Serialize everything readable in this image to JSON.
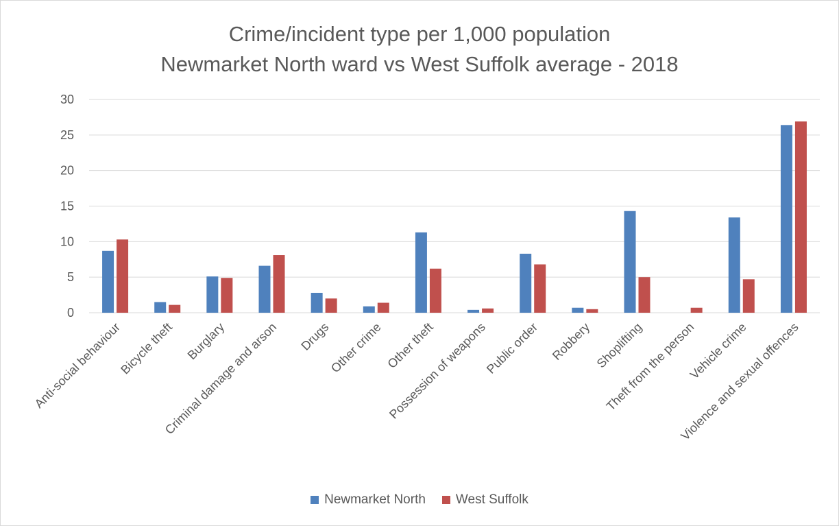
{
  "chart_data": {
    "type": "bar",
    "title": "Crime/incident type per 1,000 population",
    "subtitle": "Newmarket North ward vs West Suffolk average - 2018",
    "xlabel": "",
    "ylabel": "",
    "ylim": [
      0,
      30
    ],
    "yticks": [
      "0",
      "5",
      "10",
      "15",
      "20",
      "25",
      "30"
    ],
    "grid": true,
    "legend_position": "bottom",
    "categories": [
      "Anti-social behaviour",
      "Bicycle theft",
      "Burglary",
      "Criminal damage and arson",
      "Drugs",
      "Other crime",
      "Other theft",
      "Possession of weapons",
      "Public order",
      "Robbery",
      "Shoplifting",
      "Theft from the person",
      "Vehicle crime",
      "Violence and sexual offences"
    ],
    "series": [
      {
        "name": "Newmarket North",
        "color": "#4f81bd",
        "values": [
          8.7,
          1.5,
          5.1,
          6.6,
          2.8,
          0.9,
          11.3,
          0.4,
          8.3,
          0.7,
          14.3,
          0.0,
          13.4,
          26.4
        ]
      },
      {
        "name": "West Suffolk",
        "color": "#c0504d",
        "values": [
          10.3,
          1.1,
          4.9,
          8.1,
          2.0,
          1.4,
          6.2,
          0.6,
          6.8,
          0.5,
          5.0,
          0.7,
          4.7,
          26.9
        ]
      }
    ]
  }
}
